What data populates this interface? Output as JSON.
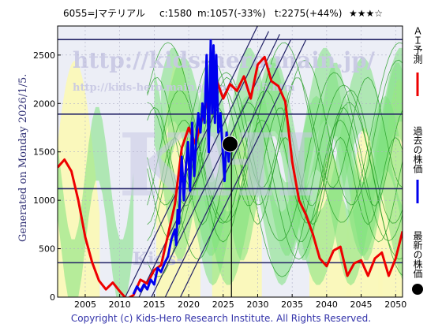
{
  "header": {
    "code_name": "6055=Jマテリアル",
    "current": "c:1580",
    "min": "m:1057(-33%)",
    "target": "t:2275(+44%)",
    "stars": "★★★☆"
  },
  "watermark": {
    "url1": "http://kids-hero.main.jp/",
    "url2": "http://kids-hero.main.jp/code6055.htm",
    "logo": "KHI",
    "mid": "Kids-"
  },
  "generated_label": "Generated on Monday 2026/1/5.",
  "copyright": "Copyright (c) Kids-Hero Research Institute. All Rights Reserved.",
  "legend": {
    "ai_forecast": "ＡＩ予測",
    "past_price": "過去の株価",
    "latest_price": "最新の株価"
  },
  "colors": {
    "plot_bg": "#eceef6",
    "band_yellow": "#fbf8b8",
    "band_green": "#7de27d",
    "ai_line": "#ee0000",
    "past_line": "#0000ee",
    "level_lines": "#222266",
    "trend_lines": "#222266",
    "watermark": "#c8c8e4",
    "axis_text": "#000000"
  },
  "chart_data": {
    "type": "line",
    "xlim": [
      2001,
      2051
    ],
    "ylim": [
      0,
      2800
    ],
    "x_ticks": [
      2005,
      2010,
      2015,
      2020,
      2025,
      2030,
      2035,
      2040,
      2045,
      2050
    ],
    "y_ticks": [
      0,
      500,
      1000,
      1500,
      2000,
      2500
    ],
    "latest_point": {
      "x": 2026.0,
      "y": 1580
    },
    "latest_vertical_x": 2026.2,
    "horizontal_levels": [
      2660,
      1890,
      1120,
      355
    ],
    "trend_lines": [
      {
        "x0": 2010.8,
        "x1": 2030.2
      },
      {
        "x0": 2012.8,
        "x1": 2031.6
      },
      {
        "x0": 2014.6,
        "x1": 2033.2
      },
      {
        "x0": 2016.6,
        "x1": 2034.8
      },
      {
        "x0": 2018.8,
        "x1": 2037.0
      }
    ],
    "trend_slope_per_year": 146,
    "series": [
      {
        "key": "ai",
        "x": [
          2001,
          2002,
          2003,
          2004,
          2005,
          2006,
          2007,
          2008,
          2009,
          2010,
          2011,
          2012,
          2013,
          2014,
          2015,
          2016,
          2017,
          2018,
          2019,
          2020,
          2021,
          2022,
          2023,
          2024,
          2025,
          2026,
          2027,
          2028,
          2029,
          2030,
          2031,
          2032,
          2033,
          2034,
          2035,
          2036,
          2037,
          2038,
          2039,
          2040,
          2041,
          2042,
          2043,
          2044,
          2045,
          2046,
          2047,
          2048,
          2049,
          2050,
          2051
        ],
        "y": [
          1340,
          1420,
          1300,
          1000,
          620,
          360,
          170,
          80,
          150,
          60,
          -20,
          20,
          180,
          140,
          280,
          330,
          640,
          960,
          1540,
          1750,
          1580,
          1860,
          2100,
          2250,
          2050,
          2200,
          2130,
          2280,
          2050,
          2400,
          2480,
          2230,
          2180,
          2020,
          1400,
          1000,
          850,
          650,
          400,
          320,
          480,
          520,
          220,
          350,
          380,
          220,
          400,
          460,
          220,
          400,
          680
        ]
      },
      {
        "key": "past",
        "x": [
          2012.0,
          2012.5,
          2013.0,
          2013.5,
          2014.0,
          2014.5,
          2015.0,
          2015.5,
          2016.0,
          2016.5,
          2017.0,
          2017.5,
          2018.0,
          2018.2,
          2018.4,
          2018.6,
          2018.8,
          2019.0,
          2019.3,
          2019.6,
          2019.9,
          2020.2,
          2020.5,
          2020.8,
          2021.1,
          2021.4,
          2021.7,
          2022.0,
          2022.3,
          2022.6,
          2022.9,
          2023.2,
          2023.4,
          2023.6,
          2023.8,
          2024.0,
          2024.3,
          2024.6,
          2024.9,
          2025.2,
          2025.5,
          2025.8,
          2026.0
        ],
        "y": [
          30,
          110,
          60,
          130,
          80,
          180,
          130,
          300,
          260,
          350,
          420,
          600,
          700,
          540,
          900,
          760,
          1200,
          1450,
          1000,
          1350,
          1600,
          1100,
          1800,
          1250,
          1650,
          1900,
          1700,
          2000,
          1800,
          2500,
          1500,
          2650,
          1900,
          2600,
          1800,
          2500,
          1700,
          1900,
          1550,
          1200,
          1700,
          1400,
          1580
        ]
      }
    ]
  }
}
